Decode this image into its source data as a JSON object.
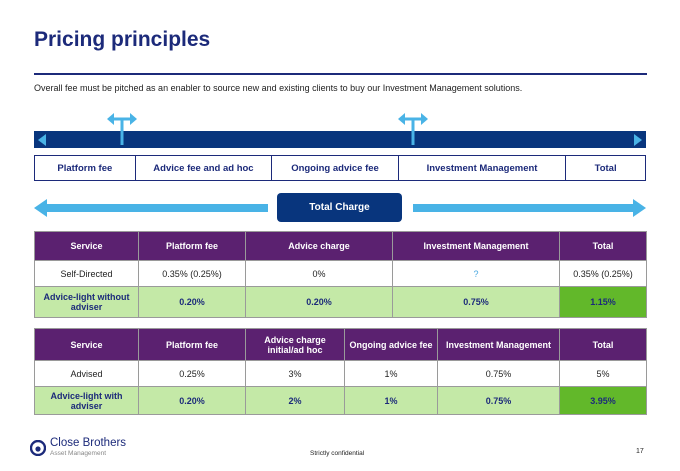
{
  "slide": {
    "title": "Pricing principles",
    "subtitle": "Overall  fee must be pitched as an enabler to source new and existing clients to buy our Investment Management solutions."
  },
  "fee_bar": [
    "Platform fee",
    "Advice fee and ad hoc",
    "Ongoing advice fee",
    "Investment Management",
    "Total"
  ],
  "total_charge_label": "Total Charge",
  "table1": {
    "headers": [
      "Service",
      "Platform fee",
      "Advice charge",
      "Investment Management",
      "Total"
    ],
    "rows": [
      [
        "Self-Directed",
        "0.35% (0.25%)",
        "0%",
        "?",
        "0.35% (0.25%)"
      ],
      [
        "Advice-light without adviser",
        "0.20%",
        "0.20%",
        "0.75%",
        "1.15%"
      ]
    ]
  },
  "table2": {
    "headers": [
      "Service",
      "Platform fee",
      "Advice charge initial/ad hoc",
      "Ongoing advice fee",
      "Investment Management",
      "Total"
    ],
    "rows": [
      [
        "Advised",
        "0.25%",
        "3%",
        "1%",
        "0.75%",
        "5%"
      ],
      [
        "Advice-light with adviser",
        "0.20%",
        "2%",
        "1%",
        "0.75%",
        "3.95%"
      ]
    ]
  },
  "footer": {
    "brand": "Close Brothers",
    "brand_sub": "Asset Management",
    "confidential": "Strictly confidential",
    "page": "17"
  },
  "colors": {
    "navy": "#1c2a7a",
    "dark_blue": "#08357d",
    "light_blue": "#49b3e6",
    "purple_header": "#5b2170",
    "light_green": "#c4e9a7",
    "dark_green": "#62b82a"
  }
}
